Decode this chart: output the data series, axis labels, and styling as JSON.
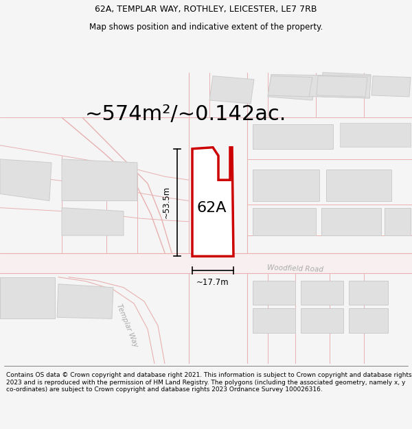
{
  "title_line1": "62A, TEMPLAR WAY, ROTHLEY, LEICESTER, LE7 7RB",
  "title_line2": "Map shows position and indicative extent of the property.",
  "area_text": "~574m²/~0.142ac.",
  "label_62A": "62A",
  "dim_height": "~53.5m",
  "dim_width": "~17.7m",
  "road_label1": "Woodfield Road",
  "road_label2": "Templar Way",
  "footer_text": "Contains OS data © Crown copyright and database right 2021. This information is subject to Crown copyright and database rights 2023 and is reproduced with the permission of HM Land Registry. The polygons (including the associated geometry, namely x, y co-ordinates) are subject to Crown copyright and database rights 2023 Ordnance Survey 100026316.",
  "bg_color": "#f5f5f5",
  "map_bg": "#ffffff",
  "road_color": "#e8b0b0",
  "road_fill": "#f5f0f0",
  "building_fill": "#e0e0e0",
  "building_edge": "#cccccc",
  "property_fill": "#ffffff",
  "property_edge": "#cc0000",
  "dim_color": "#000000",
  "title_fontsize": 9,
  "subtitle_fontsize": 8.5,
  "area_fontsize": 22,
  "label_fontsize": 16,
  "dim_fontsize": 8.5,
  "footer_fontsize": 6.5,
  "road_label_fontsize": 7.5
}
